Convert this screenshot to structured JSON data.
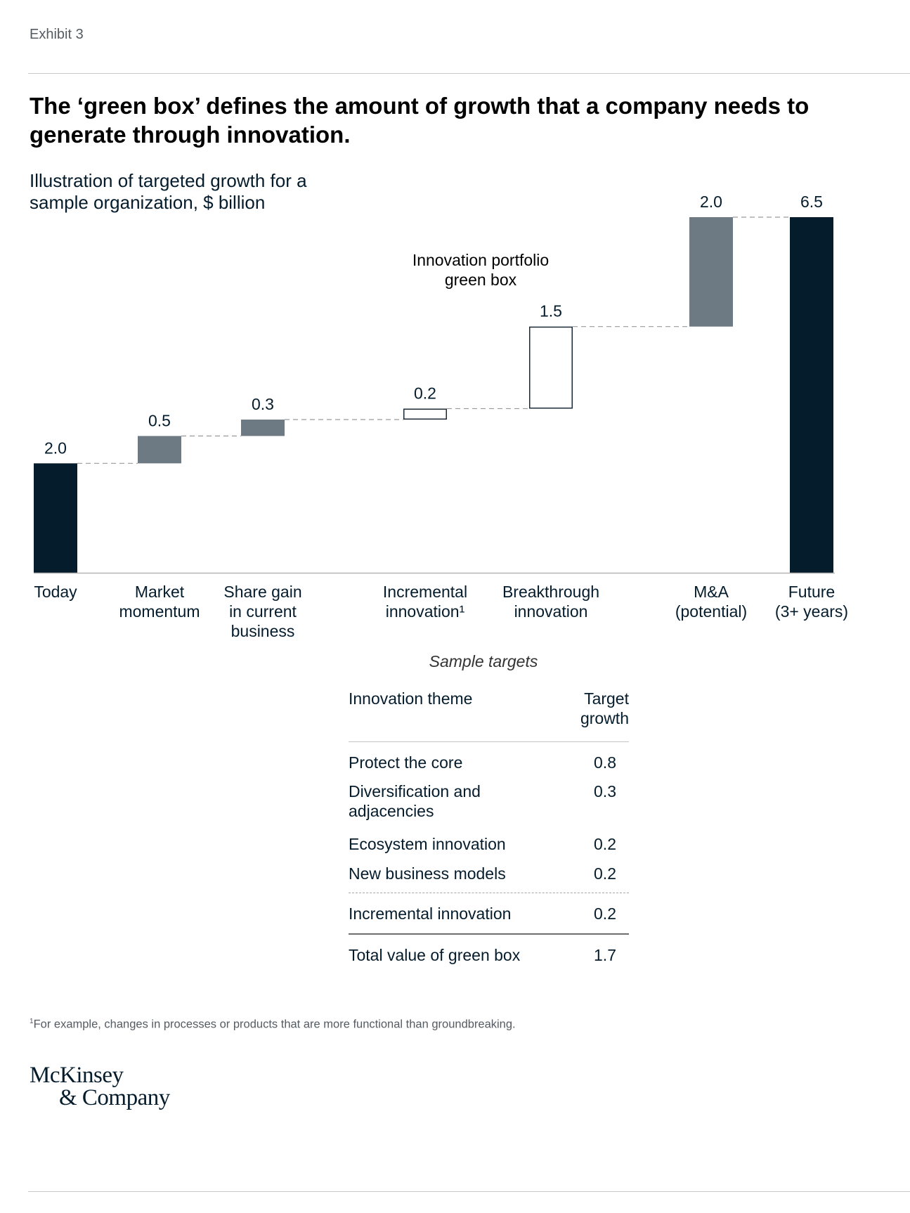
{
  "header": {
    "exhibit": "Exhibit 3",
    "title": "The ‘green box’ defines the amount of growth that a company needs to generate through innovation.",
    "subtitle": "Illustration of targeted growth for a sample organization, $ billion"
  },
  "chart_data": {
    "type": "bar",
    "subtype": "waterfall",
    "categories": [
      [
        "Today"
      ],
      [
        "Market",
        "momentum"
      ],
      [
        "Share gain",
        "in current",
        "business"
      ],
      [
        "Incremental",
        "innovation¹"
      ],
      [
        "Breakthrough",
        "innovation"
      ],
      [
        "M&A",
        "(potential)"
      ],
      [
        "Future",
        "(3+ years)"
      ]
    ],
    "value_labels": [
      "2.0",
      "0.5",
      "0.3",
      "0.2",
      "1.5",
      "2.0",
      "6.5"
    ],
    "bars": [
      {
        "kind": "total",
        "start": 0,
        "end": 2.0
      },
      {
        "kind": "increment",
        "start": 2.0,
        "end": 2.5
      },
      {
        "kind": "increment",
        "start": 2.5,
        "end": 2.8
      },
      {
        "kind": "green-box",
        "start": 2.8,
        "end": 3.0
      },
      {
        "kind": "green-box",
        "start": 3.0,
        "end": 4.5
      },
      {
        "kind": "increment",
        "start": 4.5,
        "end": 6.5
      },
      {
        "kind": "total",
        "start": 0,
        "end": 6.5
      }
    ],
    "annotation": [
      "Innovation portfolio",
      "green box"
    ],
    "ylim": [
      0,
      6.5
    ],
    "grid": false,
    "colors": {
      "total": "#051c2c",
      "increment": "#6d7a84",
      "green_box_fill": "#ffffff",
      "green_box_stroke": "#1b2a36",
      "connector": "#9a9a9a",
      "axis": "#b5b5b5"
    }
  },
  "sample_targets": {
    "title": "Sample targets",
    "headers": {
      "theme": "Innovation theme",
      "growth": "Target growth"
    },
    "rows": [
      {
        "theme": "Protect the core",
        "value": "0.8"
      },
      {
        "theme": "Diversification and adjacencies",
        "value": "0.3"
      },
      {
        "theme": "Ecosystem innovation",
        "value": "0.2"
      },
      {
        "theme": "New business models",
        "value": "0.2"
      },
      {
        "theme": "Incremental innovation",
        "value": "0.2"
      },
      {
        "theme": "Total value of green box",
        "value": "1.7"
      }
    ]
  },
  "footnote": {
    "marker": "1",
    "text": "For example, changes in processes or products that are more functional than groundbreaking."
  },
  "logo": {
    "line1": "McKinsey",
    "line2": "& Company"
  }
}
